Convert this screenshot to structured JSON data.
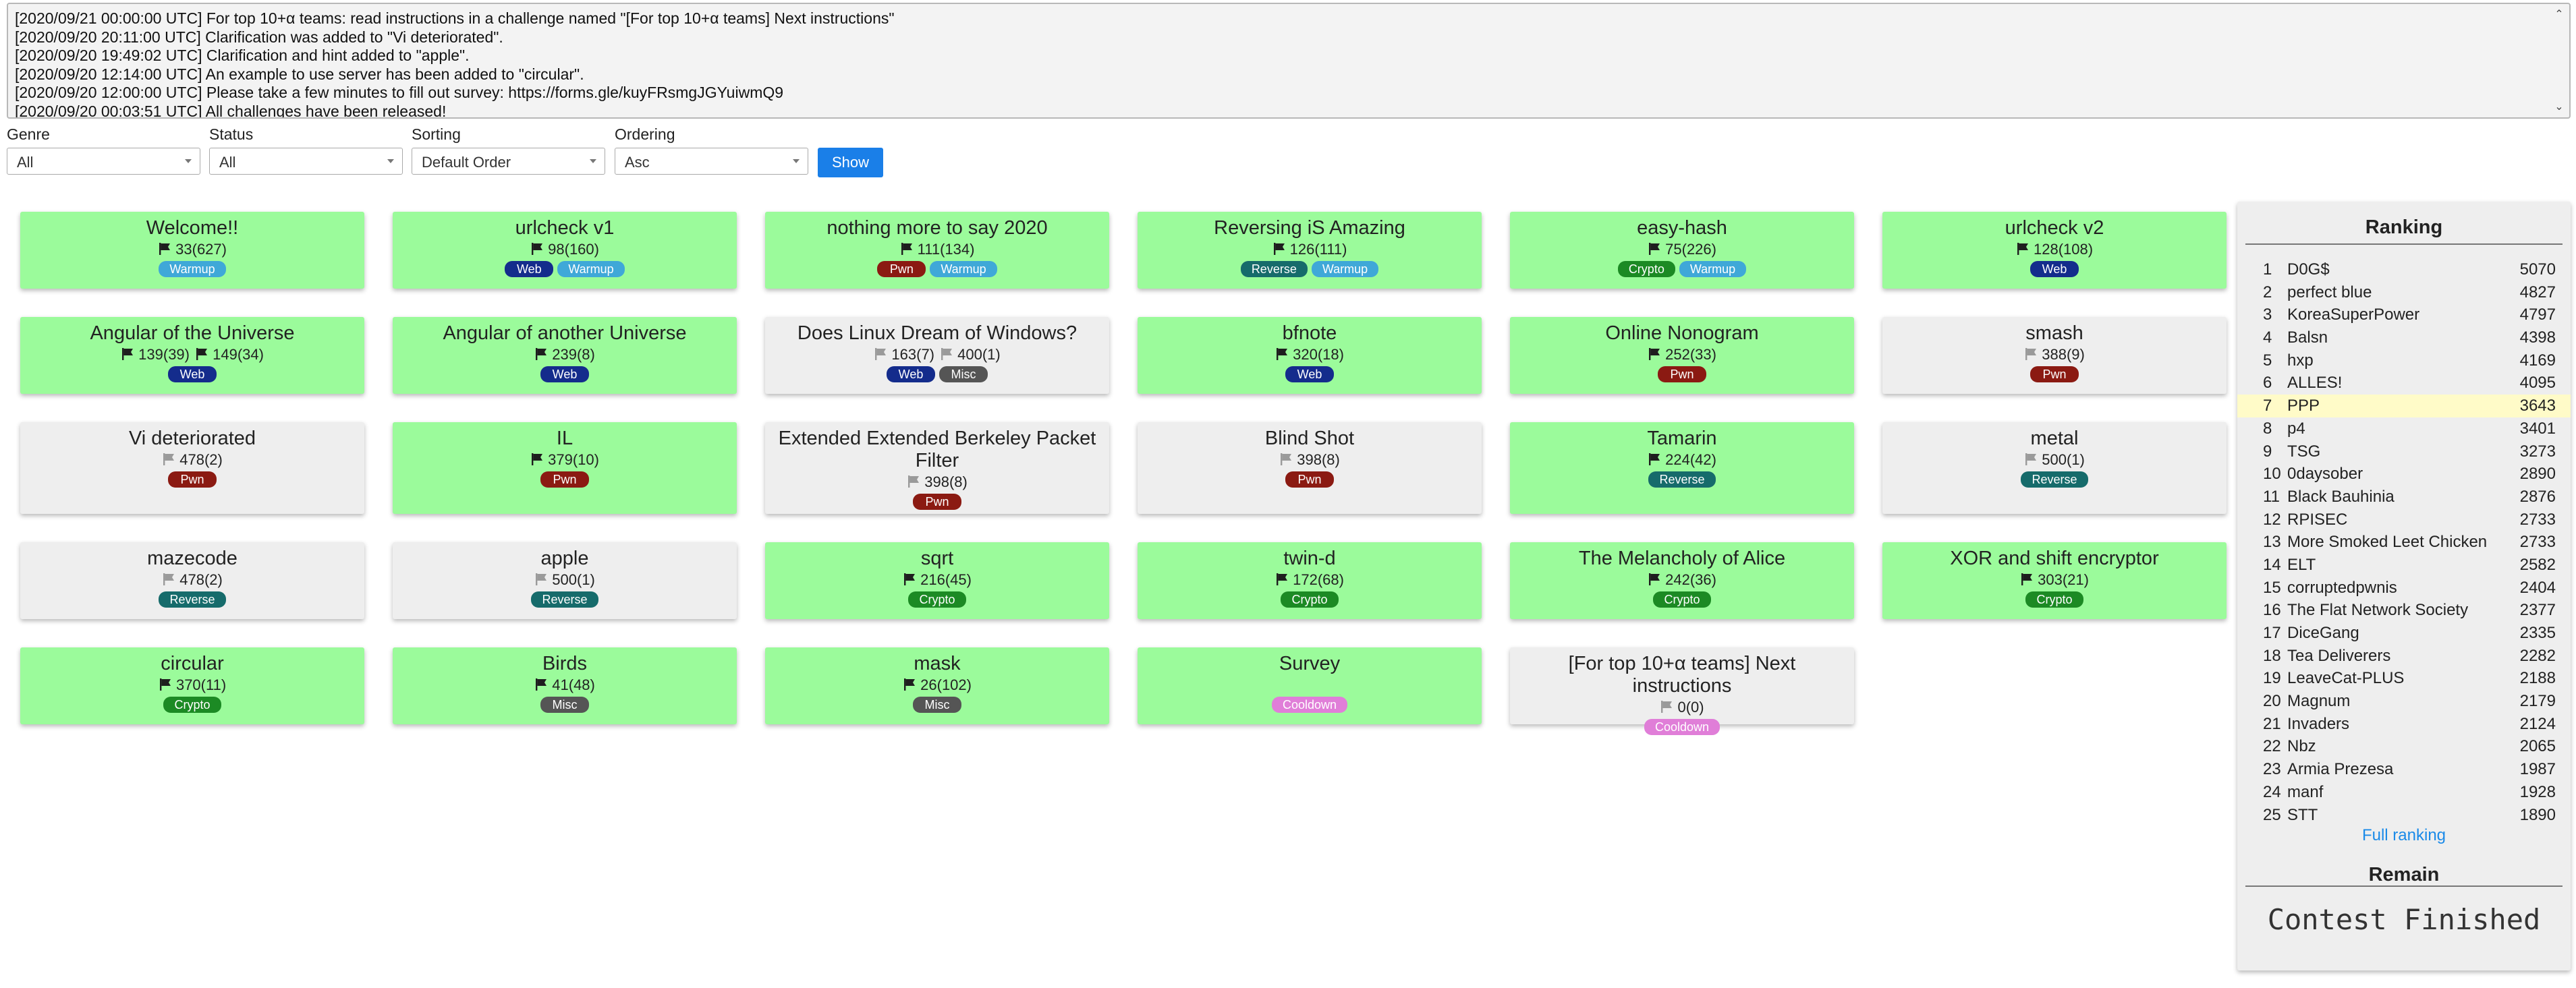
{
  "announcements": [
    {
      "time": "[2020/09/21 00:00:00 UTC]",
      "text": "For top 10+α teams: read instructions in a challenge named \"[For top 10+α teams] Next instructions\""
    },
    {
      "time": "[2020/09/20 20:11:00 UTC]",
      "text": "Clarification was added to \"Vi deteriorated\"."
    },
    {
      "time": "[2020/09/20 19:49:02 UTC]",
      "text": "Clarification and hint added to \"apple\"."
    },
    {
      "time": "[2020/09/20 12:14:00 UTC]",
      "text": "An example to use server has been added to \"circular\"."
    },
    {
      "time": "[2020/09/20 12:00:00 UTC]",
      "text": "Please take a few minutes to fill out survey: https://forms.gle/kuyFRsmgJGYuiwmQ9"
    },
    {
      "time": "[2020/09/20 00:03:51 UTC]",
      "text": "All challenges have been released!"
    }
  ],
  "filters": {
    "genre": {
      "label": "Genre",
      "value": "All"
    },
    "status": {
      "label": "Status",
      "value": "All"
    },
    "sorting": {
      "label": "Sorting",
      "value": "Default Order"
    },
    "ordering": {
      "label": "Ordering",
      "value": "Asc"
    },
    "show_label": "Show"
  },
  "tag_colors": {
    "Warmup": "#3fa8d8",
    "Web": "#142c8c",
    "Pwn": "#8b1a12",
    "Reverse": "#166b6b",
    "Crypto": "#1c8a24",
    "Misc": "#555555",
    "Cooldown": "#e07ed8"
  },
  "challenges": [
    {
      "title": "Welcome!!",
      "solved": true,
      "scores": [
        {
          "flag": "dark",
          "text": "33(627)"
        }
      ],
      "tags": [
        "Warmup"
      ]
    },
    {
      "title": "urlcheck v1",
      "solved": true,
      "scores": [
        {
          "flag": "dark",
          "text": "98(160)"
        }
      ],
      "tags": [
        "Web",
        "Warmup"
      ]
    },
    {
      "title": "nothing more to say 2020",
      "solved": true,
      "scores": [
        {
          "flag": "dark",
          "text": "111(134)"
        }
      ],
      "tags": [
        "Pwn",
        "Warmup"
      ]
    },
    {
      "title": "Reversing iS Amazing",
      "solved": true,
      "scores": [
        {
          "flag": "dark",
          "text": "126(111)"
        }
      ],
      "tags": [
        "Reverse",
        "Warmup"
      ]
    },
    {
      "title": "easy-hash",
      "solved": true,
      "scores": [
        {
          "flag": "dark",
          "text": "75(226)"
        }
      ],
      "tags": [
        "Crypto",
        "Warmup"
      ]
    },
    {
      "title": "urlcheck v2",
      "solved": true,
      "scores": [
        {
          "flag": "dark",
          "text": "128(108)"
        }
      ],
      "tags": [
        "Web"
      ]
    },
    {
      "title": "Angular of the Universe",
      "solved": true,
      "scores": [
        {
          "flag": "dark",
          "text": "139(39)"
        },
        {
          "flag": "dark",
          "text": "149(34)"
        }
      ],
      "tags": [
        "Web"
      ]
    },
    {
      "title": "Angular of another Universe",
      "solved": true,
      "scores": [
        {
          "flag": "dark",
          "text": "239(8)"
        }
      ],
      "tags": [
        "Web"
      ]
    },
    {
      "title": "Does Linux Dream of Windows?",
      "solved": false,
      "scores": [
        {
          "flag": "gray",
          "text": "163(7)"
        },
        {
          "flag": "gray",
          "text": "400(1)"
        }
      ],
      "tags": [
        "Web",
        "Misc"
      ]
    },
    {
      "title": "bfnote",
      "solved": true,
      "scores": [
        {
          "flag": "dark",
          "text": "320(18)"
        }
      ],
      "tags": [
        "Web"
      ]
    },
    {
      "title": "Online Nonogram",
      "solved": true,
      "scores": [
        {
          "flag": "dark",
          "text": "252(33)"
        }
      ],
      "tags": [
        "Pwn"
      ]
    },
    {
      "title": "smash",
      "solved": false,
      "scores": [
        {
          "flag": "gray",
          "text": "388(9)"
        }
      ],
      "tags": [
        "Pwn"
      ]
    },
    {
      "title": "Vi deteriorated",
      "solved": false,
      "scores": [
        {
          "flag": "gray",
          "text": "478(2)"
        }
      ],
      "tags": [
        "Pwn"
      ]
    },
    {
      "title": "IL",
      "solved": true,
      "scores": [
        {
          "flag": "dark",
          "text": "379(10)"
        }
      ],
      "tags": [
        "Pwn"
      ]
    },
    {
      "title": "Extended Extended Berkeley Packet Filter",
      "solved": false,
      "scores": [
        {
          "flag": "gray",
          "text": "398(8)"
        }
      ],
      "tags": [
        "Pwn"
      ]
    },
    {
      "title": "Blind Shot",
      "solved": false,
      "scores": [
        {
          "flag": "gray",
          "text": "398(8)"
        }
      ],
      "tags": [
        "Pwn"
      ]
    },
    {
      "title": "Tamarin",
      "solved": true,
      "scores": [
        {
          "flag": "dark",
          "text": "224(42)"
        }
      ],
      "tags": [
        "Reverse"
      ]
    },
    {
      "title": "metal",
      "solved": false,
      "scores": [
        {
          "flag": "gray",
          "text": "500(1)"
        }
      ],
      "tags": [
        "Reverse"
      ]
    },
    {
      "title": "mazecode",
      "solved": false,
      "scores": [
        {
          "flag": "gray",
          "text": "478(2)"
        }
      ],
      "tags": [
        "Reverse"
      ]
    },
    {
      "title": "apple",
      "solved": false,
      "scores": [
        {
          "flag": "gray",
          "text": "500(1)"
        }
      ],
      "tags": [
        "Reverse"
      ]
    },
    {
      "title": "sqrt",
      "solved": true,
      "scores": [
        {
          "flag": "dark",
          "text": "216(45)"
        }
      ],
      "tags": [
        "Crypto"
      ]
    },
    {
      "title": "twin-d",
      "solved": true,
      "scores": [
        {
          "flag": "dark",
          "text": "172(68)"
        }
      ],
      "tags": [
        "Crypto"
      ]
    },
    {
      "title": "The Melancholy of Alice",
      "solved": true,
      "scores": [
        {
          "flag": "dark",
          "text": "242(36)"
        }
      ],
      "tags": [
        "Crypto"
      ]
    },
    {
      "title": "XOR and shift encryptor",
      "solved": true,
      "scores": [
        {
          "flag": "dark",
          "text": "303(21)"
        }
      ],
      "tags": [
        "Crypto"
      ]
    },
    {
      "title": "circular",
      "solved": true,
      "scores": [
        {
          "flag": "dark",
          "text": "370(11)"
        }
      ],
      "tags": [
        "Crypto"
      ]
    },
    {
      "title": "Birds",
      "solved": true,
      "scores": [
        {
          "flag": "dark",
          "text": "41(48)"
        }
      ],
      "tags": [
        "Misc"
      ]
    },
    {
      "title": "mask",
      "solved": true,
      "scores": [
        {
          "flag": "dark",
          "text": "26(102)"
        }
      ],
      "tags": [
        "Misc"
      ]
    },
    {
      "title": "Survey",
      "solved": true,
      "scores": [],
      "tags": [
        "Cooldown"
      ]
    },
    {
      "title": "[For top 10+α teams] Next instructions",
      "solved": false,
      "scores": [
        {
          "flag": "gray",
          "text": "0(0)"
        }
      ],
      "tags": [
        "Cooldown"
      ]
    }
  ],
  "ranking": {
    "title": "Ranking",
    "rows": [
      {
        "rank": "1",
        "name": "D0G$",
        "points": "5070"
      },
      {
        "rank": "2",
        "name": "perfect blue",
        "points": "4827"
      },
      {
        "rank": "3",
        "name": "KoreaSuperPower",
        "points": "4797"
      },
      {
        "rank": "4",
        "name": "Balsn",
        "points": "4398"
      },
      {
        "rank": "5",
        "name": "hxp",
        "points": "4169"
      },
      {
        "rank": "6",
        "name": "ALLES!",
        "points": "4095"
      },
      {
        "rank": "7",
        "name": "PPP",
        "points": "3643",
        "highlight": true
      },
      {
        "rank": "8",
        "name": "p4",
        "points": "3401"
      },
      {
        "rank": "9",
        "name": "TSG",
        "points": "3273"
      },
      {
        "rank": "10",
        "name": "0daysober",
        "points": "2890"
      },
      {
        "rank": "11",
        "name": "Black Bauhinia",
        "points": "2876"
      },
      {
        "rank": "12",
        "name": "RPISEC",
        "points": "2733"
      },
      {
        "rank": "13",
        "name": "More Smoked Leet Chicken",
        "points": "2733"
      },
      {
        "rank": "14",
        "name": "ELT",
        "points": "2582"
      },
      {
        "rank": "15",
        "name": "corruptedpwnis",
        "points": "2404"
      },
      {
        "rank": "16",
        "name": "The Flat Network Society",
        "points": "2377"
      },
      {
        "rank": "17",
        "name": "DiceGang",
        "points": "2335"
      },
      {
        "rank": "18",
        "name": "Tea Deliverers",
        "points": "2282"
      },
      {
        "rank": "19",
        "name": "LeaveCat-PLUS",
        "points": "2188"
      },
      {
        "rank": "20",
        "name": "Magnum",
        "points": "2179"
      },
      {
        "rank": "21",
        "name": "Invaders",
        "points": "2124"
      },
      {
        "rank": "22",
        "name": "Nbz",
        "points": "2065"
      },
      {
        "rank": "23",
        "name": "Armia Prezesa",
        "points": "1987"
      },
      {
        "rank": "24",
        "name": "manf",
        "points": "1928"
      },
      {
        "rank": "25",
        "name": "STT",
        "points": "1890"
      }
    ],
    "full_ranking_label": "Full ranking"
  },
  "remain": {
    "title": "Remain",
    "value": "Contest Finished"
  }
}
